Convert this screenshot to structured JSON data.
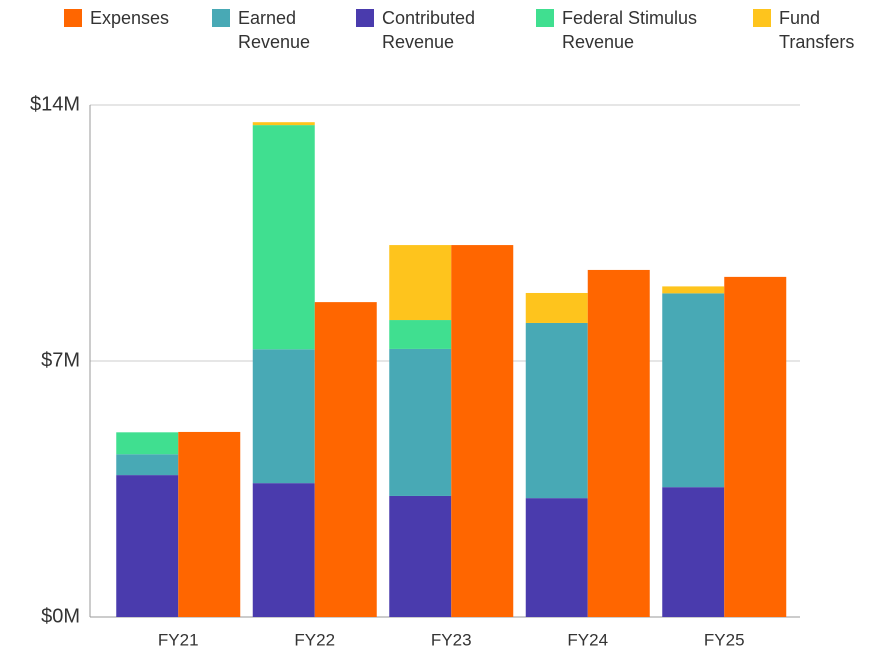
{
  "chart_data": {
    "type": "stacked-grouped-bar",
    "categories": [
      "FY21",
      "FY22",
      "FY23",
      "FY24",
      "FY25"
    ],
    "series": [
      {
        "name": "Expenses",
        "color": "#ff6600",
        "stack": "expenses",
        "values": [
          5.06,
          8.61,
          10.17,
          9.49,
          9.3
        ]
      },
      {
        "name": "Earned Revenue",
        "color": "#48a9b5",
        "stack": "revenue",
        "values": [
          0.57,
          3.66,
          4.02,
          4.79,
          5.3
        ]
      },
      {
        "name": "Contributed Revenue",
        "color": "#4a3bad",
        "stack": "revenue",
        "values": [
          3.88,
          3.66,
          3.31,
          3.25,
          3.55
        ]
      },
      {
        "name": "Federal Stimulus Revenue",
        "color": "#40df90",
        "stack": "revenue",
        "values": [
          0.6,
          6.13,
          0.79,
          0,
          0
        ]
      },
      {
        "name": "Fund Transfers",
        "color": "#fec41d",
        "stack": "revenue",
        "values": [
          0,
          0.08,
          2.05,
          0.82,
          0.19
        ]
      }
    ],
    "ylim": [
      0,
      14
    ],
    "yticks": [
      {
        "value": 0,
        "label": "$0M"
      },
      {
        "value": 7,
        "label": "$7M"
      },
      {
        "value": 14,
        "label": "$14M"
      }
    ],
    "grid": true,
    "legend": "top"
  }
}
